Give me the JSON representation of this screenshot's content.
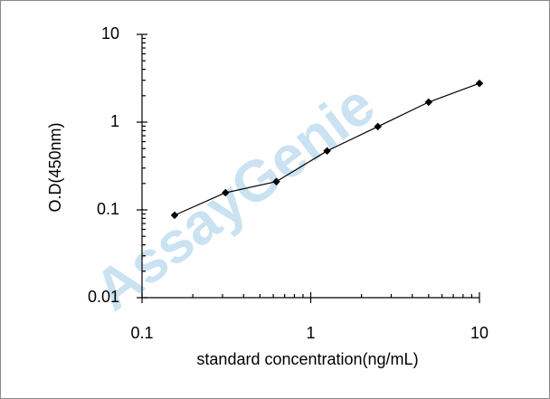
{
  "chart_data": {
    "type": "line",
    "xlabel": "standard concentration(ng/mL)",
    "ylabel": "O.D(450nm)",
    "watermark": "AssayGenie",
    "xscale": "log",
    "yscale": "log",
    "x": [
      0.156,
      0.3125,
      0.625,
      1.25,
      2.5,
      5,
      10
    ],
    "series": [
      {
        "color": "#000000",
        "values": [
          0.087,
          0.157,
          0.21,
          0.47,
          0.89,
          1.69,
          2.77
        ]
      }
    ],
    "xlim": [
      0.1,
      10
    ],
    "ylim": [
      0.01,
      10
    ],
    "xticks": [
      0.1,
      1,
      10
    ],
    "yticks": [
      0.01,
      0.1,
      1,
      10
    ]
  }
}
